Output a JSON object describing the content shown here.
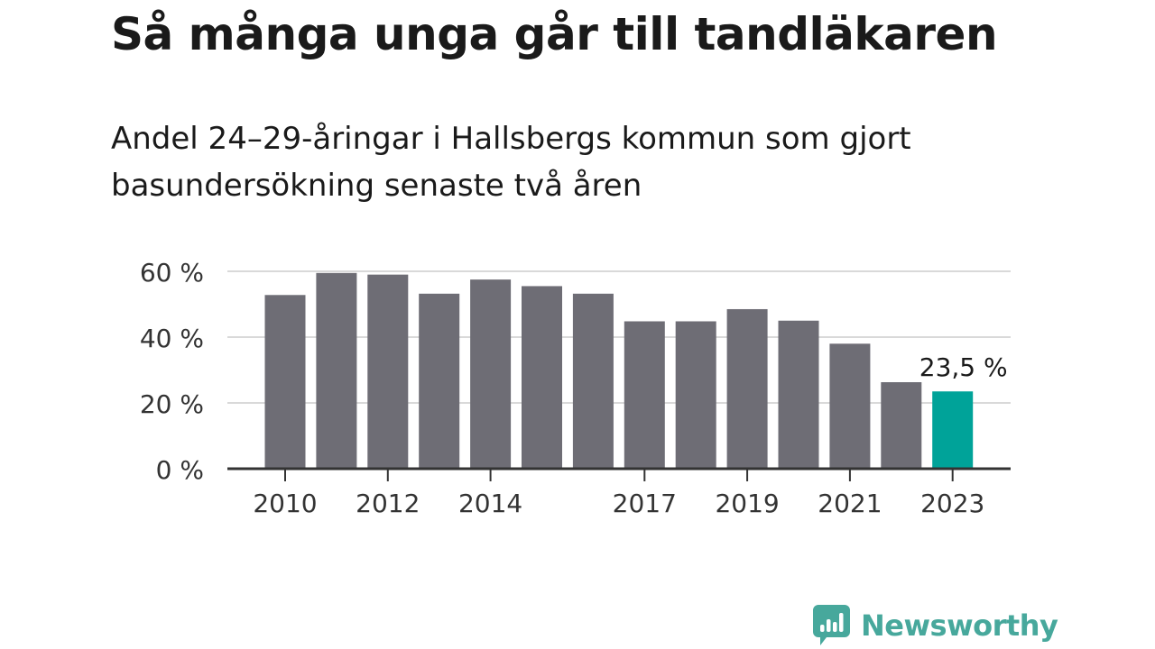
{
  "chart_data": {
    "type": "bar",
    "title": "Så många unga går till tandläkaren",
    "subtitle": "Andel 24–29-åringar i Hallsbergs kommun som gjort basundersökning senaste två åren",
    "categories": [
      "2010",
      "2011",
      "2012",
      "2013",
      "2014",
      "2015",
      "2016",
      "2017",
      "2018",
      "2019",
      "2020",
      "2021",
      "2022",
      "2023"
    ],
    "x_tick_labels": [
      "2010",
      "2012",
      "2014",
      "2017",
      "2019",
      "2021",
      "2023"
    ],
    "values": [
      52.8,
      59.5,
      59.0,
      53.2,
      57.5,
      55.5,
      53.2,
      44.8,
      44.8,
      48.5,
      45.0,
      38.0,
      26.3,
      23.5
    ],
    "y_tick_labels": [
      "0 %",
      "20 %",
      "40 %",
      "60 %"
    ],
    "y_ticks": [
      0,
      20,
      40,
      60
    ],
    "ylim": [
      0,
      60
    ],
    "xlabel": "",
    "ylabel": "",
    "grid": true,
    "highlight_index": 13,
    "highlight_label": "23,5 %",
    "colors": {
      "bar": "#6e6d75",
      "highlight": "#00a399",
      "grid": "#d9d9d9",
      "axis": "#333333",
      "tick_text": "#333333"
    }
  },
  "brand": {
    "name": "Newsworthy",
    "color": "#47a89c"
  }
}
